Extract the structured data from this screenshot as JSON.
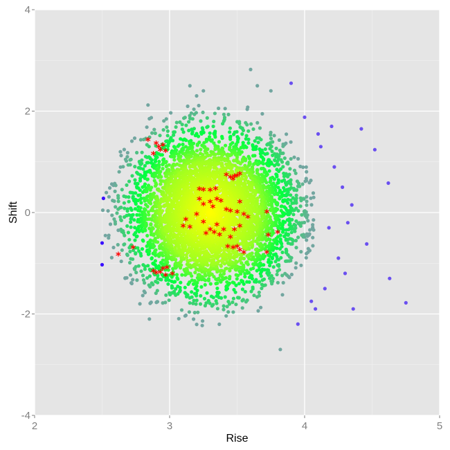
{
  "chart_data": {
    "type": "scatter",
    "xlabel": "Rise",
    "ylabel": "Shift",
    "xlim": [
      2,
      5
    ],
    "ylim": [
      -4,
      4
    ],
    "xticks": [
      2,
      3,
      4,
      5
    ],
    "yticks": [
      -4,
      -2,
      0,
      2,
      4
    ],
    "xtick_labels": [
      "2",
      "3",
      "4",
      "5"
    ],
    "ytick_labels": [
      "-4",
      "-2",
      "0",
      "2",
      "4"
    ],
    "grid": true,
    "background_color": "#e5e5e5",
    "gridline_color": "#ffffff",
    "colors": {
      "density_center": "#ffff00",
      "density_mid": "#00ff40",
      "density_edge": "#72a6a0",
      "outlier": "#6a4ff0",
      "far_outlier": "#3a10ff",
      "highlight": "#ff0000"
    },
    "density_cloud": {
      "description_center": [
        3.3,
        0.0
      ],
      "x_spread_sd": 0.28,
      "y_spread_sd": 0.75
    },
    "outlier_points": [
      [
        3.6,
        2.82
      ],
      [
        3.82,
        -2.7
      ],
      [
        4.75,
        -1.78
      ],
      [
        4.63,
        -1.3
      ],
      [
        4.62,
        0.58
      ],
      [
        4.52,
        1.24
      ],
      [
        4.42,
        1.65
      ],
      [
        4.46,
        -0.62
      ],
      [
        4.36,
        -1.9
      ],
      [
        4.35,
        0.15
      ],
      [
        4.28,
        0.5
      ],
      [
        4.2,
        1.7
      ],
      [
        4.15,
        -1.5
      ],
      [
        4.1,
        1.55
      ],
      [
        4.12,
        1.3
      ],
      [
        4.25,
        -0.9
      ],
      [
        4.3,
        -1.2
      ],
      [
        4.05,
        -1.75
      ],
      [
        4.0,
        1.88
      ],
      [
        4.18,
        -0.3
      ],
      [
        3.9,
        2.55
      ],
      [
        2.51,
        0.28
      ],
      [
        2.5,
        -1.03
      ],
      [
        2.5,
        -0.6
      ],
      [
        2.55,
        -0.45
      ],
      [
        2.62,
        -0.35
      ],
      [
        2.84,
        2.12
      ],
      [
        2.85,
        1.85
      ],
      [
        3.15,
        2.5
      ],
      [
        3.25,
        2.4
      ],
      [
        3.2,
        2.3
      ],
      [
        3.65,
        2.5
      ],
      [
        3.75,
        2.4
      ],
      [
        2.72,
        -1.4
      ],
      [
        2.78,
        -1.8
      ],
      [
        2.85,
        -2.1
      ],
      [
        3.95,
        -2.2
      ],
      [
        4.08,
        -1.9
      ],
      [
        4.22,
        0.9
      ],
      [
        4.32,
        -0.2
      ]
    ],
    "highlight_points": [
      [
        2.84,
        1.42
      ],
      [
        2.9,
        1.35
      ],
      [
        2.92,
        1.28
      ],
      [
        2.95,
        1.32
      ],
      [
        2.88,
        1.15
      ],
      [
        2.97,
        1.2
      ],
      [
        2.93,
        1.22
      ],
      [
        2.88,
        -1.17
      ],
      [
        2.9,
        -1.2
      ],
      [
        2.93,
        -1.19
      ],
      [
        2.95,
        -1.12
      ],
      [
        2.97,
        -1.25
      ],
      [
        3.02,
        -1.22
      ],
      [
        2.98,
        -1.1
      ],
      [
        2.62,
        -0.84
      ],
      [
        2.73,
        -0.7
      ],
      [
        3.22,
        0.45
      ],
      [
        3.25,
        0.44
      ],
      [
        3.3,
        0.43
      ],
      [
        3.34,
        0.46
      ],
      [
        3.42,
        0.73
      ],
      [
        3.45,
        0.68
      ],
      [
        3.47,
        0.65
      ],
      [
        3.5,
        0.72
      ],
      [
        3.52,
        0.75
      ],
      [
        3.48,
        0.7
      ],
      [
        3.22,
        0.25
      ],
      [
        3.25,
        0.15
      ],
      [
        3.3,
        0.2
      ],
      [
        3.32,
        0.1
      ],
      [
        3.35,
        0.25
      ],
      [
        3.38,
        0.22
      ],
      [
        3.42,
        0.05
      ],
      [
        3.45,
        0.02
      ],
      [
        3.5,
        0.0
      ],
      [
        3.52,
        0.2
      ],
      [
        3.55,
        -0.05
      ],
      [
        3.58,
        -0.1
      ],
      [
        3.2,
        -0.05
      ],
      [
        3.25,
        -0.2
      ],
      [
        3.3,
        -0.35
      ],
      [
        3.33,
        -0.4
      ],
      [
        3.35,
        -0.25
      ],
      [
        3.4,
        -0.35
      ],
      [
        3.45,
        -0.5
      ],
      [
        3.47,
        -0.7
      ],
      [
        3.5,
        -0.68
      ],
      [
        3.52,
        -0.75
      ],
      [
        3.55,
        -0.8
      ],
      [
        3.43,
        -0.68
      ],
      [
        3.15,
        -0.3
      ],
      [
        3.12,
        -0.15
      ],
      [
        3.1,
        -0.28
      ],
      [
        3.27,
        -0.42
      ],
      [
        3.37,
        -0.45
      ],
      [
        3.48,
        -0.35
      ],
      [
        3.52,
        -0.28
      ],
      [
        3.72,
        0.0
      ],
      [
        3.73,
        -0.46
      ],
      [
        3.8,
        -0.4
      ],
      [
        3.72,
        -0.8
      ]
    ]
  }
}
